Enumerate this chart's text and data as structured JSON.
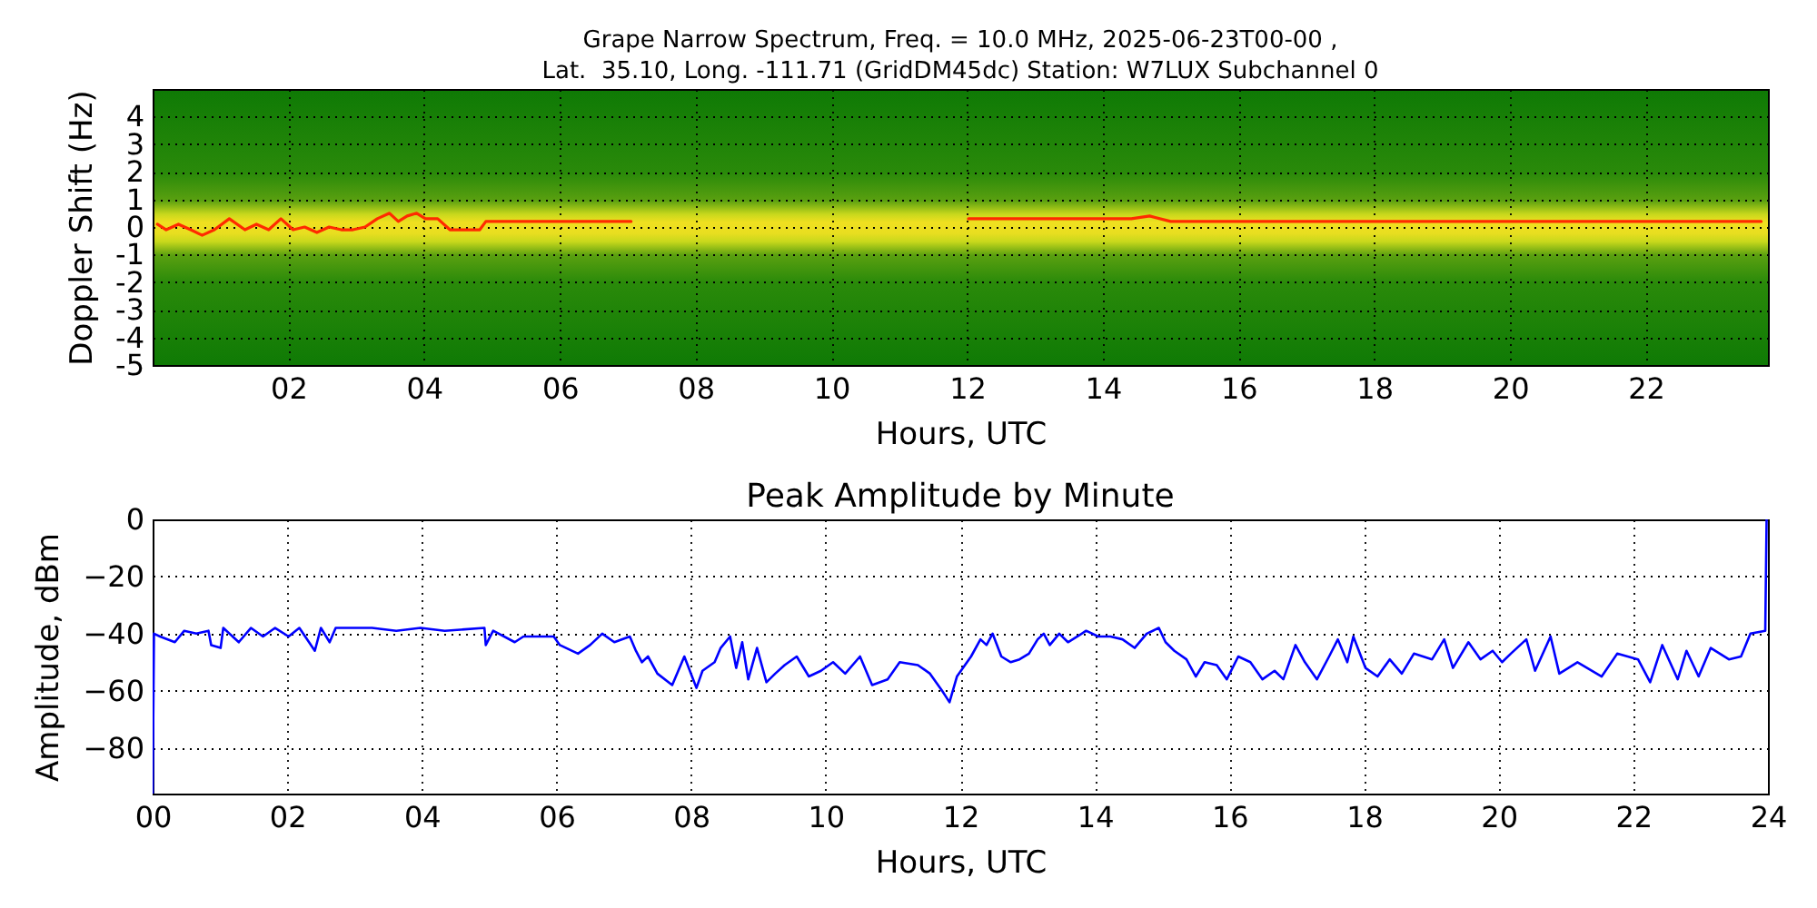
{
  "chart_data": [
    {
      "type": "line",
      "title": "Grape Narrow Spectrum, Freq. = 10.0 MHz, 2025-06-23T00-00 ,\nLat.  35.10, Long. -111.71 (GridDM45dc) Station: W7LUX Subchannel 0",
      "xlabel": "Hours, UTC",
      "ylabel": "Doppler Shift (Hz)",
      "series": [
        {
          "color": "#ff2a00",
          "x": [
            0.07,
            0.2,
            0.38,
            0.56,
            0.73,
            0.91,
            1.13,
            1.36,
            1.53,
            1.71,
            1.89,
            2.07,
            2.24,
            2.42,
            2.6,
            2.78,
            2.95,
            3.13,
            3.31,
            3.49,
            3.62,
            3.75,
            3.89,
            4.02,
            4.2,
            4.38,
            4.55,
            4.82,
            4.91,
            5.98,
            7.05,
            9.5,
            12.02,
            14.42,
            14.69,
            15.0,
            18.0,
            21.0,
            23.7
          ],
          "values": [
            0.1,
            -0.1,
            0.1,
            -0.1,
            -0.3,
            -0.1,
            0.3,
            -0.1,
            0.1,
            -0.1,
            0.3,
            -0.1,
            0,
            -0.2,
            0,
            -0.1,
            -0.1,
            0,
            0.3,
            0.5,
            0.2,
            0.4,
            0.5,
            0.3,
            0.3,
            -0.1,
            -0.1,
            -0.1,
            0.2,
            0.2,
            0.2,
            null,
            0.3,
            0.3,
            0.4,
            0.2,
            0.2,
            0.2,
            0.2
          ]
        }
      ],
      "xlim": [
        0,
        23.8
      ],
      "xticks": [
        {
          "value": 2,
          "label": "02"
        },
        {
          "value": 4,
          "label": "04"
        },
        {
          "value": 6,
          "label": "06"
        },
        {
          "value": 8,
          "label": "08"
        },
        {
          "value": 10,
          "label": "10"
        },
        {
          "value": 12,
          "label": "12"
        },
        {
          "value": 14,
          "label": "14"
        },
        {
          "value": 16,
          "label": "16"
        },
        {
          "value": 18,
          "label": "18"
        },
        {
          "value": 20,
          "label": "20"
        },
        {
          "value": 22,
          "label": "22"
        }
      ],
      "ylim": [
        -5,
        5
      ],
      "yticks": [
        -5,
        -4,
        -3,
        -2,
        -1,
        0,
        1,
        2,
        3,
        4
      ],
      "grid": true
    },
    {
      "type": "line",
      "title": "Peak Amplitude by Minute",
      "xlabel": "Hours, UTC",
      "ylabel": "Amplitude, dBm",
      "color": "#0000ff",
      "x": [
        0,
        0.02,
        0.11,
        0.33,
        0.47,
        0.65,
        0.83,
        0.87,
        1.01,
        1.05,
        1.28,
        1.46,
        1.64,
        1.82,
        2.02,
        2.18,
        2.41,
        2.5,
        2.63,
        2.72,
        3.26,
        3.62,
        3.98,
        4.34,
        4.93,
        4.95,
        5.06,
        5.38,
        5.51,
        5.78,
        5.96,
        6.05,
        6.32,
        6.5,
        6.68,
        6.86,
        7.09,
        7.18,
        7.27,
        7.36,
        7.5,
        7.72,
        7.9,
        8.08,
        8.17,
        8.35,
        8.44,
        8.58,
        8.67,
        8.76,
        8.85,
        8.98,
        9.12,
        9.25,
        9.39,
        9.57,
        9.75,
        9.93,
        10.11,
        10.29,
        10.51,
        10.69,
        10.92,
        11.1,
        11.37,
        11.55,
        11.73,
        11.84,
        11.95,
        12.16,
        12.3,
        12.39,
        12.48,
        12.61,
        12.75,
        12.88,
        13.02,
        13.15,
        13.24,
        13.33,
        13.47,
        13.6,
        13.74,
        13.87,
        14.05,
        14.23,
        14.41,
        14.59,
        14.77,
        14.95,
        15.05,
        15.18,
        15.36,
        15.5,
        15.63,
        15.81,
        15.96,
        16.13,
        16.31,
        16.49,
        16.67,
        16.8,
        16.98,
        17.12,
        17.3,
        17.48,
        17.61,
        17.75,
        17.84,
        18.02,
        18.2,
        18.38,
        18.56,
        18.74,
        19.01,
        19.19,
        19.32,
        19.55,
        19.73,
        19.91,
        20.05,
        20.18,
        20.41,
        20.54,
        20.77,
        20.9,
        21.17,
        21.53,
        21.76,
        22.07,
        22.25,
        22.43,
        22.66,
        22.79,
        22.97,
        23.15,
        23.42,
        23.6,
        23.74,
        23.96,
        23.98
      ],
      "values": [
        -96,
        -40,
        -41,
        -43,
        -39,
        -40,
        -39,
        -44,
        -45,
        -38,
        -43,
        -38,
        -41,
        -38,
        -41,
        -38,
        -46,
        -38,
        -43,
        -38,
        -38,
        -39,
        -38,
        -39,
        -38,
        -44,
        -39,
        -43,
        -41,
        -41,
        -41,
        -44,
        -47,
        -44,
        -40,
        -43,
        -41,
        -46,
        -50,
        -48,
        -54,
        -58,
        -48,
        -59,
        -53,
        -50,
        -45,
        -41,
        -52,
        -43,
        -56,
        -45,
        -57,
        -54,
        -51,
        -48,
        -55,
        -53,
        -50,
        -54,
        -48,
        -58,
        -56,
        -50,
        -51,
        -54,
        -60,
        -64,
        -55,
        -48,
        -42,
        -44,
        -40,
        -48,
        -50,
        -49,
        -47,
        -42,
        -40,
        -44,
        -40,
        -43,
        -41,
        -39,
        -41,
        -41,
        -42,
        -45,
        -40,
        -38,
        -43,
        -46,
        -49,
        -55,
        -50,
        -51,
        -56,
        -48,
        -50,
        -56,
        -53,
        -56,
        -44,
        -50,
        -56,
        -48,
        -42,
        -50,
        -41,
        -52,
        -55,
        -49,
        -54,
        -47,
        -49,
        -42,
        -52,
        -43,
        -49,
        -46,
        -50,
        -47,
        -42,
        -53,
        -41,
        -54,
        -50,
        -55,
        -47,
        -49,
        -57,
        -44,
        -56,
        -46,
        -55,
        -45,
        -49,
        -48,
        -40,
        -39,
        0
      ],
      "xlim": [
        0,
        24
      ],
      "xticks": [
        {
          "value": 0,
          "label": "00"
        },
        {
          "value": 2,
          "label": "02"
        },
        {
          "value": 4,
          "label": "04"
        },
        {
          "value": 6,
          "label": "06"
        },
        {
          "value": 8,
          "label": "08"
        },
        {
          "value": 10,
          "label": "10"
        },
        {
          "value": 12,
          "label": "12"
        },
        {
          "value": 14,
          "label": "14"
        },
        {
          "value": 16,
          "label": "16"
        },
        {
          "value": 18,
          "label": "18"
        },
        {
          "value": 20,
          "label": "20"
        },
        {
          "value": 22,
          "label": "22"
        },
        {
          "value": 24,
          "label": "24"
        }
      ],
      "ylim": [
        -96,
        0
      ],
      "yticks": [
        -80,
        -60,
        -40,
        -20,
        0
      ],
      "grid": true
    }
  ]
}
